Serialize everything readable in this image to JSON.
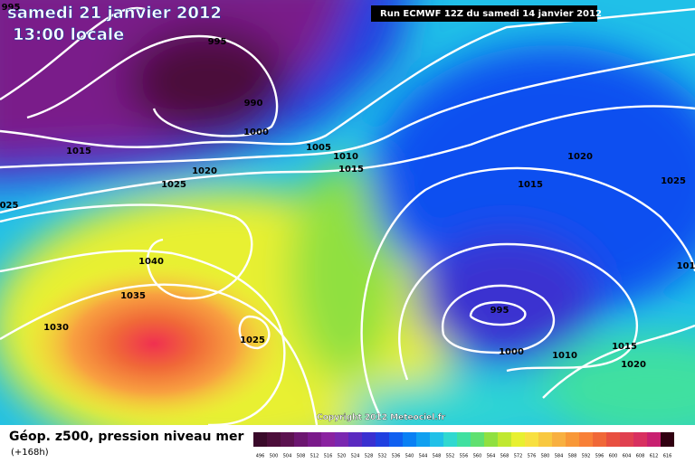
{
  "header": {
    "date": "samedi 21 janvier 2012",
    "time": "13:00 locale",
    "run": "Run ECMWF 12Z du samedi 14 janvier 2012"
  },
  "copyright": "Copyright 2012 Meteociel.fr",
  "legend": {
    "title": "Géop. z500, pression niveau mer",
    "lead": "(+168h)",
    "labels": [
      496,
      500,
      504,
      508,
      512,
      516,
      520,
      524,
      528,
      532,
      536,
      540,
      544,
      548,
      552,
      556,
      560,
      564,
      568,
      572,
      576,
      580,
      584,
      588,
      592,
      596,
      600,
      604,
      608,
      612,
      616
    ],
    "colors": [
      "#3a0a2a",
      "#4c0e3a",
      "#5c1250",
      "#6c1670",
      "#7a1a8a",
      "#8a22a0",
      "#7a28b0",
      "#5a2ac0",
      "#3a30d0",
      "#2040e0",
      "#1060f0",
      "#0a80f4",
      "#10a0f0",
      "#20c0e8",
      "#30d8d0",
      "#40e0a0",
      "#60e070",
      "#90e040",
      "#c0e830",
      "#e8f030",
      "#f8e040",
      "#f8c840",
      "#f8b040",
      "#f89838",
      "#f88038",
      "#f06838",
      "#e85040",
      "#e04050",
      "#d83060",
      "#c82070",
      "#300010"
    ]
  },
  "isobars": [
    "995",
    "995",
    "990",
    "1000",
    "1005",
    "1010",
    "1015",
    "1015",
    "1020",
    "1025",
    "025",
    "1040",
    "1035",
    "1030",
    "1025",
    "995",
    "1000",
    "1010",
    "1015",
    "1020",
    "1015",
    "1020",
    "1025",
    "101"
  ]
}
